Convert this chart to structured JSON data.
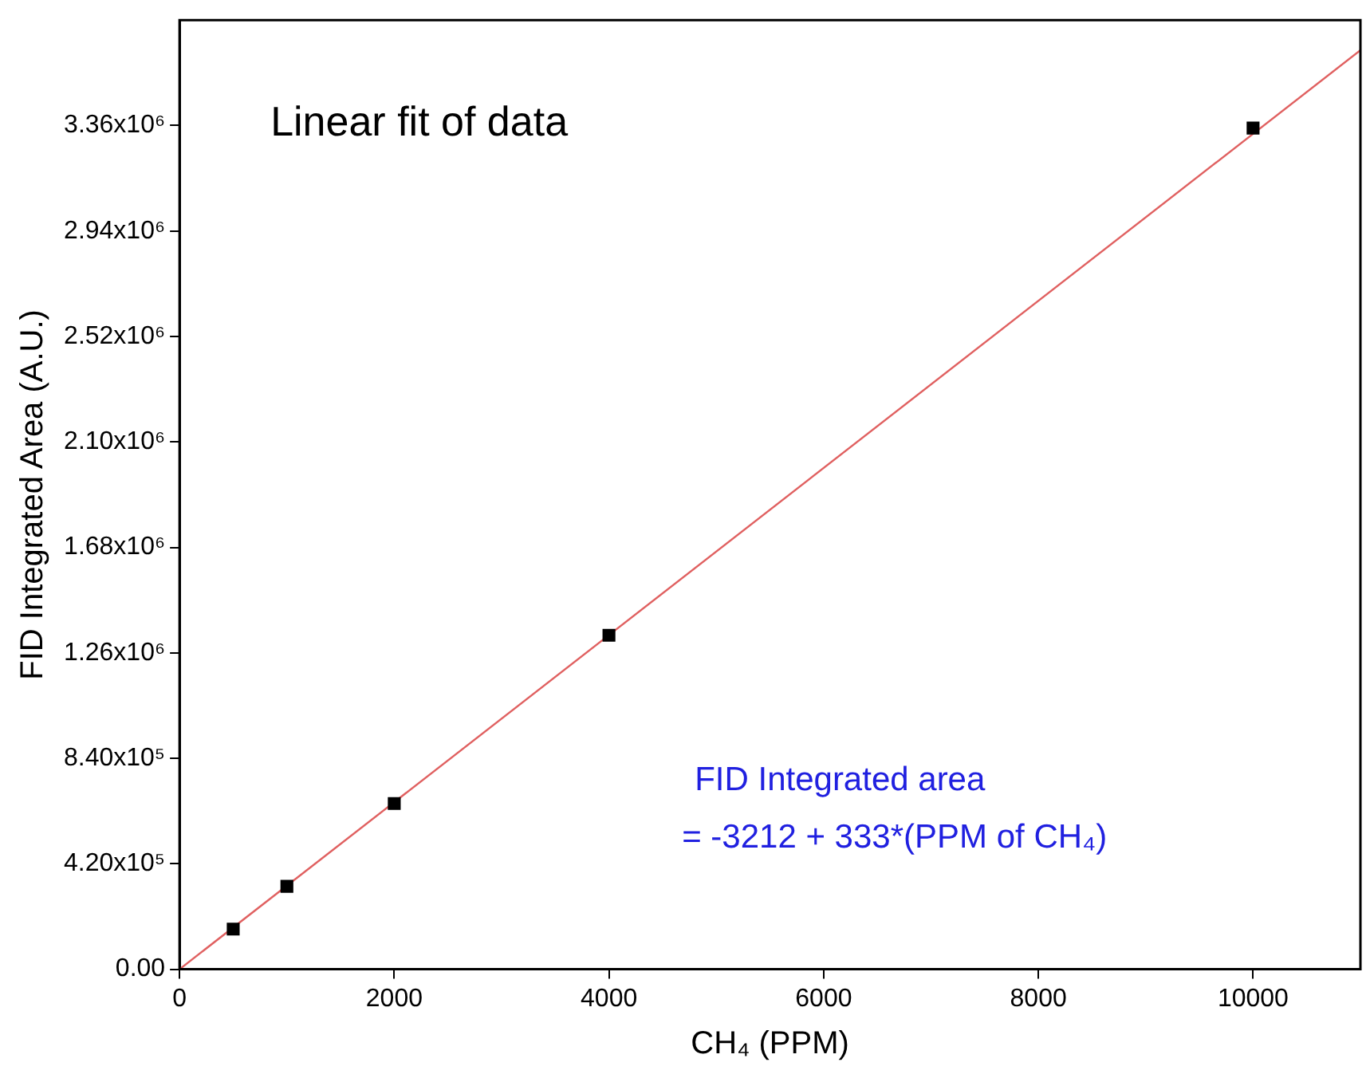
{
  "chart_data": {
    "type": "scatter",
    "xlabel": "CH₄ (PPM)",
    "ylabel": "FID Integrated Area (A.U.)",
    "x": [
      500,
      1000,
      2000,
      4000,
      10000
    ],
    "series": [
      {
        "type": "scatter",
        "color": "#000000",
        "marker": "square",
        "values": [
          160000,
          330000,
          660000,
          1330000,
          3350000
        ]
      },
      {
        "type": "line",
        "color": "#e06060",
        "marker": "none",
        "x": [
          0,
          11000
        ],
        "values": [
          0,
          3660000
        ]
      }
    ],
    "xlim": [
      0,
      11000
    ],
    "xticks": [
      0,
      2000,
      4000,
      6000,
      8000,
      10000
    ],
    "ylim": [
      0,
      3780000
    ],
    "yticks": [
      {
        "value": 0,
        "label": "0.00"
      },
      {
        "value": 420000,
        "label": "4.20x10⁵"
      },
      {
        "value": 840000,
        "label": "8.40x10⁵"
      },
      {
        "value": 1260000,
        "label": "1.26x10⁶"
      },
      {
        "value": 1680000,
        "label": "1.68x10⁶"
      },
      {
        "value": 2100000,
        "label": "2.10x10⁶"
      },
      {
        "value": 2520000,
        "label": "2.52x10⁶"
      },
      {
        "value": 2940000,
        "label": "2.94x10⁶"
      },
      {
        "value": 3360000,
        "label": "3.36x10⁶"
      }
    ],
    "grid": false,
    "legend": false,
    "annotations": [
      "Linear fit of data",
      "FID Integrated area\n= -3212 + 333*(PPM of CH₄)"
    ]
  }
}
